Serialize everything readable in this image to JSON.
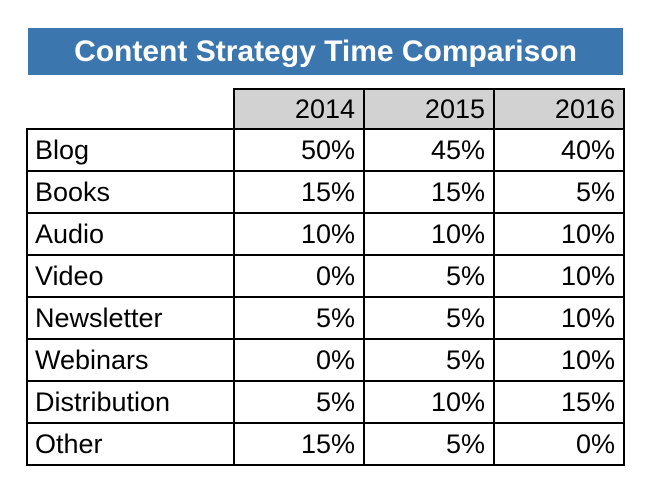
{
  "banner": {
    "title": "Content Strategy Time Comparison",
    "background": "#3b76af",
    "text_color": "#ffffff"
  },
  "table": {
    "columns": [
      "2014",
      "2015",
      "2016"
    ],
    "rows": [
      {
        "label": "Blog",
        "values": [
          "50%",
          "45%",
          "40%"
        ]
      },
      {
        "label": "Books",
        "values": [
          "15%",
          "15%",
          "5%"
        ]
      },
      {
        "label": "Audio",
        "values": [
          "10%",
          "10%",
          "10%"
        ]
      },
      {
        "label": "Video",
        "values": [
          "0%",
          "5%",
          "10%"
        ]
      },
      {
        "label": "Newsletter",
        "values": [
          "5%",
          "5%",
          "10%"
        ]
      },
      {
        "label": "Webinars",
        "values": [
          "0%",
          "5%",
          "10%"
        ]
      },
      {
        "label": "Distribution",
        "values": [
          "5%",
          "10%",
          "15%"
        ]
      },
      {
        "label": "Other",
        "values": [
          "15%",
          "5%",
          "0%"
        ]
      }
    ],
    "header_background": "#d2d2d2",
    "border_color": "#000000"
  },
  "chart_data": {
    "type": "table",
    "title": "Content Strategy Time Comparison",
    "categories": [
      "Blog",
      "Books",
      "Audio",
      "Video",
      "Newsletter",
      "Webinars",
      "Distribution",
      "Other"
    ],
    "series": [
      {
        "name": "2014",
        "values": [
          50,
          15,
          10,
          0,
          5,
          0,
          5,
          15
        ]
      },
      {
        "name": "2015",
        "values": [
          45,
          15,
          10,
          5,
          5,
          5,
          10,
          5
        ]
      },
      {
        "name": "2016",
        "values": [
          40,
          5,
          10,
          10,
          10,
          10,
          15,
          0
        ]
      }
    ],
    "unit": "%"
  }
}
